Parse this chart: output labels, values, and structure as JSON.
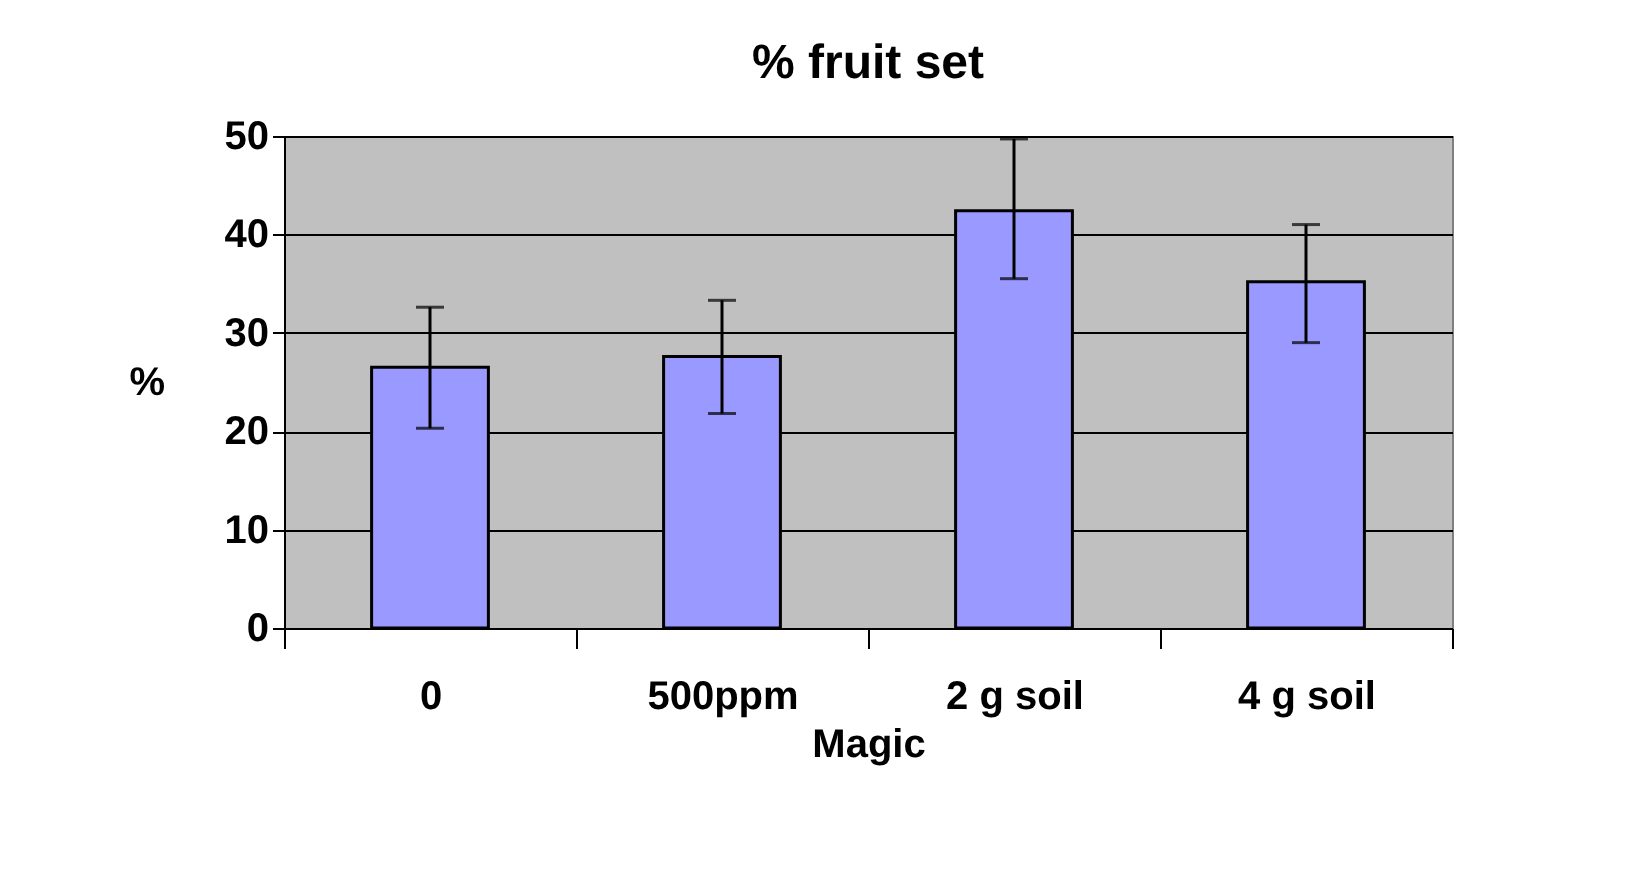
{
  "chart_data": {
    "type": "bar",
    "title": "% fruit set",
    "xlabel": "Magic",
    "ylabel": "%",
    "categories": [
      "0",
      "500ppm",
      "2 g soil",
      "4 g soil"
    ],
    "values": [
      26.5,
      27.6,
      42.4,
      35.2
    ],
    "errors": [
      [
        20.3,
        32.6
      ],
      [
        21.8,
        33.3
      ],
      [
        35.5,
        49.7
      ],
      [
        29.0,
        41.0
      ]
    ],
    "color": "#9999ff",
    "ylim": [
      0,
      50
    ],
    "yticks": [
      0,
      10,
      20,
      30,
      40,
      50
    ],
    "grid": "y"
  }
}
